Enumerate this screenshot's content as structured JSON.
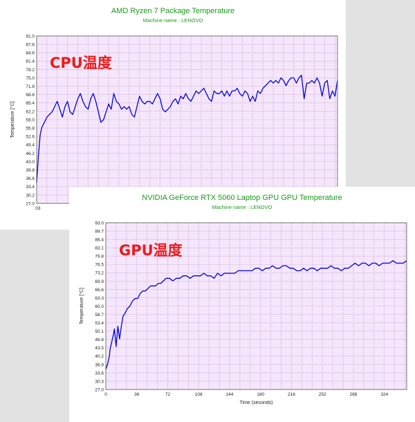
{
  "charts": {
    "cpu": {
      "title": "AMD Ryzen 7 Package Temperature",
      "subtitle": "Machine name : LENOVO",
      "overlay_label": "CPU温度",
      "ylabel": "Temperature [°C]",
      "yticks": [
        "91.0",
        "87.8",
        "84.6",
        "81.4",
        "78.2",
        "75.0",
        "71.8",
        "68.6",
        "65.4",
        "62.2",
        "59.0",
        "55.8",
        "52.6",
        "49.4",
        "46.2",
        "43.0",
        "39.8",
        "36.6",
        "33.4",
        "30.2",
        "27.0"
      ],
      "xticks": [
        "0",
        "3"
      ]
    },
    "gpu": {
      "title": "NVIDIA GeForce RTX 5060 Laptop GPU GPU Temperature",
      "subtitle": "Machine name : LENOVO",
      "overlay_label": "GPU温度",
      "ylabel": "Temperature [°C]",
      "xlabel": "Time (seconds)",
      "yticks": [
        "93.0",
        "89.7",
        "86.4",
        "83.1",
        "79.8",
        "76.5",
        "73.2",
        "69.9",
        "66.6",
        "63.3",
        "60.0",
        "56.7",
        "53.4",
        "50.1",
        "46.8",
        "43.5",
        "40.2",
        "36.9",
        "33.6",
        "30.3",
        "27.0"
      ],
      "xticks": [
        "0",
        "36",
        "72",
        "108",
        "144",
        "180",
        "216",
        "252",
        "288",
        "324"
      ]
    }
  },
  "colors": {
    "line": "#0000dd",
    "plot_bg": "#f5e6fb",
    "grid": "#c9a6d4",
    "title": "#1a9a1a",
    "label": "#ee1a1a"
  },
  "chart_data": [
    {
      "type": "line",
      "title": "AMD Ryzen 7 Package Temperature",
      "ylabel": "Temperature [°C]",
      "ylim": [
        27.0,
        91.0
      ],
      "grid": true,
      "series": [
        {
          "x": [
            0,
            2,
            4,
            6,
            9,
            12,
            15,
            18,
            21,
            24,
            27,
            30,
            33,
            36,
            39,
            42,
            45,
            48,
            51,
            54,
            57,
            60,
            63,
            66,
            69,
            72,
            75,
            78,
            81,
            84,
            87,
            90,
            93,
            96,
            99,
            102,
            105,
            108,
            111,
            114,
            117,
            120,
            123,
            126,
            129,
            132,
            135,
            138,
            141,
            144,
            147,
            150,
            153,
            156,
            159,
            162,
            165,
            168,
            171,
            174,
            177,
            180,
            183,
            186,
            189,
            192,
            195,
            198,
            201,
            204,
            207,
            210,
            213,
            216,
            219,
            222,
            225,
            228,
            231,
            234,
            237,
            240,
            243,
            246,
            249,
            252,
            255,
            258,
            261,
            264,
            267,
            270,
            273,
            276,
            279,
            282,
            285,
            288,
            291,
            294,
            297,
            300,
            303,
            306,
            309,
            312,
            315,
            318,
            321,
            324,
            327,
            330,
            333,
            336,
            339,
            342,
            345,
            348,
            351
          ],
          "y": [
            35,
            45,
            53,
            56,
            58,
            60,
            61,
            62,
            64,
            66,
            63,
            60,
            64,
            66,
            62,
            61,
            64,
            67,
            69,
            66,
            64,
            63,
            67,
            69,
            66,
            62,
            58,
            59,
            62,
            65,
            63,
            69,
            66,
            65,
            63,
            64,
            63,
            64,
            61,
            60,
            64,
            68,
            66,
            65,
            66,
            66,
            65,
            67,
            69,
            67,
            63,
            62,
            63,
            64,
            66,
            67,
            65,
            68,
            67,
            69,
            67,
            66,
            68,
            70,
            69,
            70,
            71,
            69,
            67,
            66,
            70,
            69,
            69,
            70,
            68,
            70,
            68,
            70,
            70,
            71,
            69,
            68,
            70,
            69,
            66,
            68,
            66,
            70,
            69,
            71,
            72,
            73,
            74,
            73,
            74,
            73,
            75,
            74,
            72,
            74,
            75,
            75,
            73,
            75,
            76,
            67,
            73,
            73,
            74,
            73,
            75,
            73,
            68,
            73,
            74,
            67,
            70,
            68,
            74
          ],
          "x_units": "seconds"
        }
      ]
    },
    {
      "type": "line",
      "title": "NVIDIA GeForce RTX 5060 Laptop GPU GPU Temperature",
      "xlabel": "Time (seconds)",
      "ylabel": "Temperature [°C]",
      "ylim": [
        27.0,
        93.0
      ],
      "xlim": [
        0,
        350
      ],
      "grid": true,
      "series": [
        {
          "x": [
            0,
            2,
            4,
            5,
            7,
            9,
            10,
            12,
            14,
            16,
            18,
            20,
            22,
            25,
            28,
            31,
            34,
            37,
            40,
            43,
            46,
            49,
            52,
            55,
            58,
            61,
            64,
            67,
            70,
            74,
            78,
            82,
            86,
            90,
            94,
            98,
            102,
            106,
            110,
            114,
            118,
            122,
            126,
            130,
            134,
            138,
            142,
            146,
            150,
            154,
            158,
            162,
            166,
            170,
            174,
            178,
            182,
            186,
            190,
            194,
            198,
            202,
            206,
            210,
            214,
            218,
            222,
            226,
            230,
            234,
            238,
            242,
            246,
            250,
            254,
            258,
            262,
            266,
            270,
            274,
            278,
            282,
            286,
            290,
            294,
            298,
            302,
            306,
            310,
            314,
            318,
            322,
            326,
            330,
            334,
            338,
            342,
            346,
            350
          ],
          "y": [
            35,
            37,
            40,
            43,
            46,
            49,
            51,
            44,
            52,
            47,
            52,
            56,
            57,
            59,
            60,
            62,
            63,
            63,
            65,
            66,
            66,
            67,
            68,
            68,
            68,
            69,
            69,
            70,
            71,
            71,
            70,
            71,
            71,
            72,
            72,
            71,
            72,
            72,
            72,
            73,
            72,
            72,
            71,
            73,
            72,
            73,
            73,
            73,
            73,
            74,
            74,
            74,
            74,
            74,
            75,
            75,
            74,
            75,
            75,
            76,
            75,
            75,
            76,
            76,
            75,
            75,
            74,
            74,
            75,
            74,
            75,
            75,
            74,
            75,
            75,
            75,
            76,
            75,
            75,
            74,
            75,
            75,
            76,
            77,
            76,
            77,
            77,
            76,
            77,
            77,
            76,
            77,
            77,
            77,
            78,
            77,
            77,
            77,
            78
          ],
          "x_units": "seconds"
        }
      ]
    }
  ]
}
